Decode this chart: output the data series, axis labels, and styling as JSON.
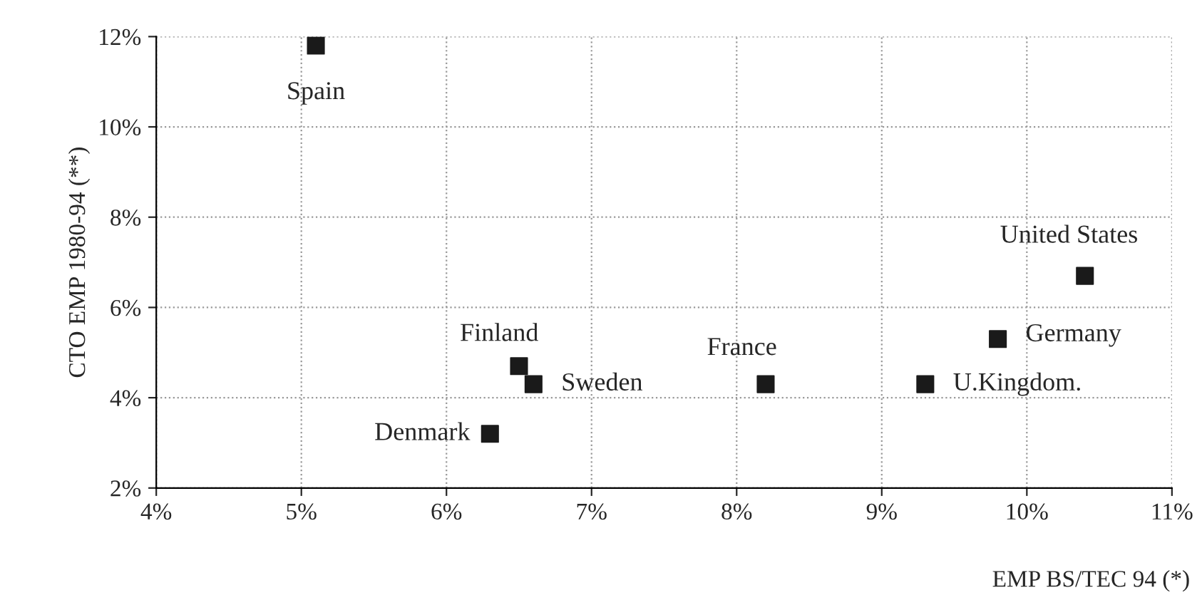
{
  "chart_data": {
    "type": "scatter",
    "xlabel": "EMP BS/TEC 94 (*)",
    "ylabel": "CTO EMP 1980-94 (**)",
    "x": [
      5.1,
      6.5,
      6.6,
      6.3,
      8.2,
      9.3,
      9.8,
      10.4
    ],
    "series": [
      {
        "color": "#1a1a1a",
        "values": [
          11.8,
          4.7,
          4.3,
          3.2,
          4.3,
          4.3,
          5.3,
          6.7
        ]
      }
    ],
    "annotations": [
      {
        "text": "Spain",
        "x": 5.1,
        "y": 11.8
      },
      {
        "text": "Finland",
        "x": 6.5,
        "y": 4.7
      },
      {
        "text": "Sweden",
        "x": 6.6,
        "y": 4.3
      },
      {
        "text": "Denmark",
        "x": 6.3,
        "y": 3.2
      },
      {
        "text": "France",
        "x": 8.2,
        "y": 4.3
      },
      {
        "text": "U.Kingdom.",
        "x": 9.3,
        "y": 4.3
      },
      {
        "text": "Germany",
        "x": 9.8,
        "y": 5.3
      },
      {
        "text": "United States",
        "x": 10.4,
        "y": 6.7
      }
    ],
    "xlim": [
      4,
      11
    ],
    "xticks": [
      {
        "value": 4,
        "label": "4%"
      },
      {
        "value": 5,
        "label": "5%"
      },
      {
        "value": 6,
        "label": "6%"
      },
      {
        "value": 7,
        "label": "7%"
      },
      {
        "value": 8,
        "label": "8%"
      },
      {
        "value": 9,
        "label": "9%"
      },
      {
        "value": 10,
        "label": "10%"
      },
      {
        "value": 11,
        "label": "11%"
      }
    ],
    "ylim": [
      2,
      12
    ],
    "yticks": [
      {
        "value": 2,
        "label": "2%"
      },
      {
        "value": 4,
        "label": "4%"
      },
      {
        "value": 6,
        "label": "6%"
      },
      {
        "value": 8,
        "label": "8%"
      },
      {
        "value": 10,
        "label": "10%"
      },
      {
        "value": 12,
        "label": "12%"
      }
    ],
    "grid": true,
    "marker": "square"
  }
}
